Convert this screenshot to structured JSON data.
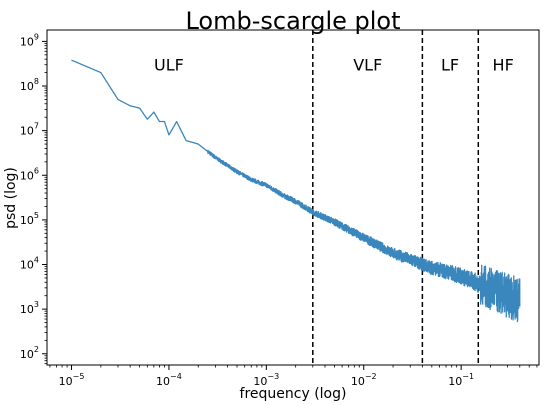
{
  "chart_data": {
    "type": "line",
    "title": "Lomb-scargle plot",
    "xlabel": "frequency (log)",
    "ylabel": "psd (log)",
    "xscale": "log",
    "yscale": "log",
    "xlim": [
      5.6e-06,
      0.63
    ],
    "ylim": [
      56.0,
      1800000000.0
    ],
    "grid": false,
    "line_color": "#3a87bd",
    "x_ticks": [
      {
        "value": 1e-05,
        "base": "10",
        "exp": "−5"
      },
      {
        "value": 0.0001,
        "base": "10",
        "exp": "−4"
      },
      {
        "value": 0.001,
        "base": "10",
        "exp": "−3"
      },
      {
        "value": 0.01,
        "base": "10",
        "exp": "−2"
      },
      {
        "value": 0.1,
        "base": "10",
        "exp": "−1"
      }
    ],
    "y_ticks": [
      {
        "value": 100.0,
        "base": "10",
        "exp": "2"
      },
      {
        "value": 1000.0,
        "base": "10",
        "exp": "3"
      },
      {
        "value": 10000.0,
        "base": "10",
        "exp": "4"
      },
      {
        "value": 100000.0,
        "base": "10",
        "exp": "5"
      },
      {
        "value": 1000000.0,
        "base": "10",
        "exp": "6"
      },
      {
        "value": 10000000.0,
        "base": "10",
        "exp": "7"
      },
      {
        "value": 100000000.0,
        "base": "10",
        "exp": "8"
      },
      {
        "value": 1000000000.0,
        "base": "10",
        "exp": "9"
      }
    ],
    "band_boundaries": [
      0.003,
      0.04,
      0.15
    ],
    "band_labels": [
      {
        "text": "ULF",
        "x": 0.0001
      },
      {
        "text": "VLF",
        "x": 0.011
      },
      {
        "text": "LF",
        "x": 0.077
      },
      {
        "text": "HF",
        "x": 0.27
      }
    ],
    "band_label_y": 300000000.0,
    "series": [
      {
        "x": [
          1e-05,
          2e-05,
          3e-05,
          4e-05,
          5e-05,
          6e-05,
          7e-05,
          8e-05,
          9e-05,
          0.0001,
          0.00012,
          0.00015,
          0.0002,
          0.0003,
          0.0005,
          0.0007,
          0.001,
          0.0015,
          0.002,
          0.003,
          0.005,
          0.007,
          0.01,
          0.015,
          0.02,
          0.03,
          0.04,
          0.05,
          0.07,
          0.1,
          0.15,
          0.2,
          0.3,
          0.4
        ],
        "y": [
          380000000.0,
          200000000.0,
          50000000.0,
          36000000.0,
          32000000.0,
          18000000.0,
          26000000.0,
          16000000.0,
          16000000.0,
          8000000.0,
          16000000.0,
          6000000.0,
          5000000.0,
          2500000.0,
          1200000.0,
          800000.0,
          600000.0,
          350000.0,
          260000.0,
          150000.0,
          90000.0,
          60000.0,
          40000.0,
          25000.0,
          18000.0,
          13000.0,
          10000.0,
          8500.0,
          7000.0,
          5500.0,
          3800.0,
          2800.0,
          2000.0,
          1600.0
        ]
      }
    ]
  }
}
